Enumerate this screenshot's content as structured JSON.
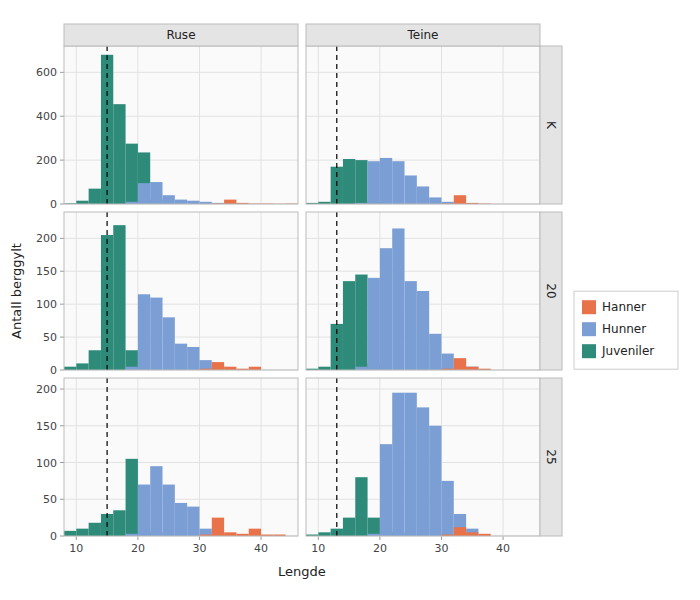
{
  "chart_data": [
    {
      "type": "histogram",
      "title": "Ruse",
      "ylabel": "Antall berggylt",
      "legend": "right",
      "grid": true,
      "tick_labels": "y",
      "xlim": [
        8,
        46
      ],
      "xticks": [
        10,
        20,
        30,
        40
      ],
      "ylim": [
        0,
        720
      ],
      "yticks": [
        0,
        200,
        400,
        600
      ],
      "annotations": [
        {
          "x": 15,
          "line_style": "dashed"
        }
      ],
      "series": [
        {
          "name": "Juveniler",
          "color": "#2E8B7A",
          "bins": [
            8,
            10,
            12,
            14,
            16,
            18,
            20,
            22,
            24,
            26
          ],
          "values": [
            3,
            15,
            70,
            680,
            455,
            275,
            235,
            20,
            5
          ]
        },
        {
          "name": "Hunner",
          "color": "#7B9FD4",
          "bins": [
            18,
            20,
            22,
            24,
            26,
            28,
            30,
            32,
            34,
            36
          ],
          "values": [
            10,
            95,
            100,
            40,
            20,
            15,
            10,
            5,
            2
          ]
        },
        {
          "name": "Hanner",
          "color": "#E8734A",
          "bins": [
            32,
            34,
            36,
            38,
            40,
            42,
            44,
            46
          ],
          "values": [
            2,
            20,
            5,
            2,
            2,
            1,
            2
          ]
        }
      ]
    },
    {
      "type": "histogram",
      "title": "Teine",
      "subtitle": "K",
      "grid": true,
      "tick_labels": false,
      "xlim": [
        8,
        46
      ],
      "xticks": [
        10,
        20,
        30,
        40
      ],
      "ylim": [
        0,
        720
      ],
      "yticks": [
        0,
        200,
        400,
        600
      ],
      "annotations": [
        {
          "x": 13,
          "line_style": "dashed"
        }
      ],
      "series": [
        {
          "name": "Juveniler",
          "color": "#2E8B7A",
          "bins": [
            8,
            10,
            12,
            14,
            16,
            18,
            20
          ],
          "values": [
            5,
            10,
            170,
            205,
            200,
            10
          ]
        },
        {
          "name": "Hunner",
          "color": "#7B9FD4",
          "bins": [
            16,
            18,
            20,
            22,
            24,
            26,
            28,
            30,
            32,
            34,
            36
          ],
          "values": [
            5,
            195,
            210,
            195,
            130,
            80,
            30,
            10,
            3,
            1
          ]
        },
        {
          "name": "Hanner",
          "color": "#E8734A",
          "bins": [
            30,
            32,
            34,
            36,
            38
          ],
          "values": [
            2,
            40,
            5,
            2
          ]
        }
      ]
    },
    {
      "type": "histogram",
      "grid": true,
      "tick_labels": "y",
      "xlim": [
        8,
        46
      ],
      "xticks": [
        10,
        20,
        30,
        40
      ],
      "ylim": [
        0,
        240
      ],
      "yticks": [
        0,
        50,
        100,
        150,
        200
      ],
      "annotations": [
        {
          "x": 15,
          "line_style": "dashed"
        }
      ],
      "series": [
        {
          "name": "Juveniler",
          "color": "#2E8B7A",
          "bins": [
            8,
            10,
            12,
            14,
            16,
            18,
            20
          ],
          "values": [
            5,
            10,
            30,
            205,
            220,
            30
          ]
        },
        {
          "name": "Hunner",
          "color": "#7B9FD4",
          "bins": [
            18,
            20,
            22,
            24,
            26,
            28,
            30,
            32,
            34
          ],
          "values": [
            5,
            115,
            110,
            80,
            40,
            35,
            15,
            5
          ]
        },
        {
          "name": "Hanner",
          "color": "#E8734A",
          "bins": [
            30,
            32,
            34,
            36,
            38,
            40
          ],
          "values": [
            2,
            12,
            5,
            2,
            5
          ]
        }
      ]
    },
    {
      "type": "histogram",
      "subtitle": "20",
      "grid": true,
      "tick_labels": false,
      "xlim": [
        8,
        46
      ],
      "xticks": [
        10,
        20,
        30,
        40
      ],
      "ylim": [
        0,
        240
      ],
      "yticks": [
        0,
        50,
        100,
        150,
        200
      ],
      "annotations": [
        {
          "x": 13,
          "line_style": "dashed"
        }
      ],
      "series": [
        {
          "name": "Juveniler",
          "color": "#2E8B7A",
          "bins": [
            8,
            10,
            12,
            14,
            16,
            18,
            20
          ],
          "values": [
            2,
            5,
            70,
            135,
            145,
            10
          ]
        },
        {
          "name": "Hunner",
          "color": "#7B9FD4",
          "bins": [
            16,
            18,
            20,
            22,
            24,
            26,
            28,
            30,
            32,
            34,
            36
          ],
          "values": [
            5,
            140,
            185,
            215,
            135,
            120,
            55,
            25,
            15,
            5
          ]
        },
        {
          "name": "Hanner",
          "color": "#E8734A",
          "bins": [
            30,
            32,
            34,
            36,
            38
          ],
          "values": [
            2,
            18,
            5,
            2
          ]
        }
      ]
    },
    {
      "type": "histogram",
      "xlabel": "Lengde",
      "grid": true,
      "xlim": [
        8,
        46
      ],
      "xticks": [
        10,
        20,
        30,
        40
      ],
      "ylim": [
        0,
        215
      ],
      "yticks": [
        0,
        50,
        100,
        150,
        200
      ],
      "annotations": [
        {
          "x": 15,
          "line_style": "dashed"
        }
      ],
      "series": [
        {
          "name": "Juveniler",
          "color": "#2E8B7A",
          "bins": [
            8,
            10,
            12,
            14,
            16,
            18,
            20,
            22,
            24
          ],
          "values": [
            7,
            10,
            18,
            30,
            35,
            105,
            10,
            5
          ]
        },
        {
          "name": "Hunner",
          "color": "#7B9FD4",
          "bins": [
            18,
            20,
            22,
            24,
            26,
            28,
            30,
            32,
            34
          ],
          "values": [
            3,
            70,
            95,
            70,
            45,
            40,
            10,
            5
          ]
        },
        {
          "name": "Hanner",
          "color": "#E8734A",
          "bins": [
            30,
            32,
            34,
            36,
            38,
            40,
            42,
            44
          ],
          "values": [
            2,
            25,
            5,
            3,
            10,
            2,
            2
          ]
        }
      ]
    },
    {
      "type": "histogram",
      "subtitle": "25",
      "grid": true,
      "tick_labels": "x",
      "xlim": [
        8,
        46
      ],
      "xticks": [
        10,
        20,
        30,
        40
      ],
      "ylim": [
        0,
        215
      ],
      "yticks": [
        0,
        50,
        100,
        150,
        200
      ],
      "annotations": [
        {
          "x": 13,
          "line_style": "dashed"
        }
      ],
      "series": [
        {
          "name": "Juveniler",
          "color": "#2E8B7A",
          "bins": [
            8,
            10,
            12,
            14,
            16,
            18,
            20,
            22,
            24
          ],
          "values": [
            2,
            5,
            10,
            25,
            80,
            25,
            10,
            5
          ]
        },
        {
          "name": "Hunner",
          "color": "#7B9FD4",
          "bins": [
            18,
            20,
            22,
            24,
            26,
            28,
            30,
            32,
            34,
            36
          ],
          "values": [
            3,
            125,
            195,
            195,
            175,
            150,
            75,
            30,
            10
          ]
        },
        {
          "name": "Hanner",
          "color": "#E8734A",
          "bins": [
            30,
            32,
            34,
            36,
            38
          ],
          "values": [
            2,
            12,
            5,
            3
          ]
        }
      ]
    }
  ]
}
